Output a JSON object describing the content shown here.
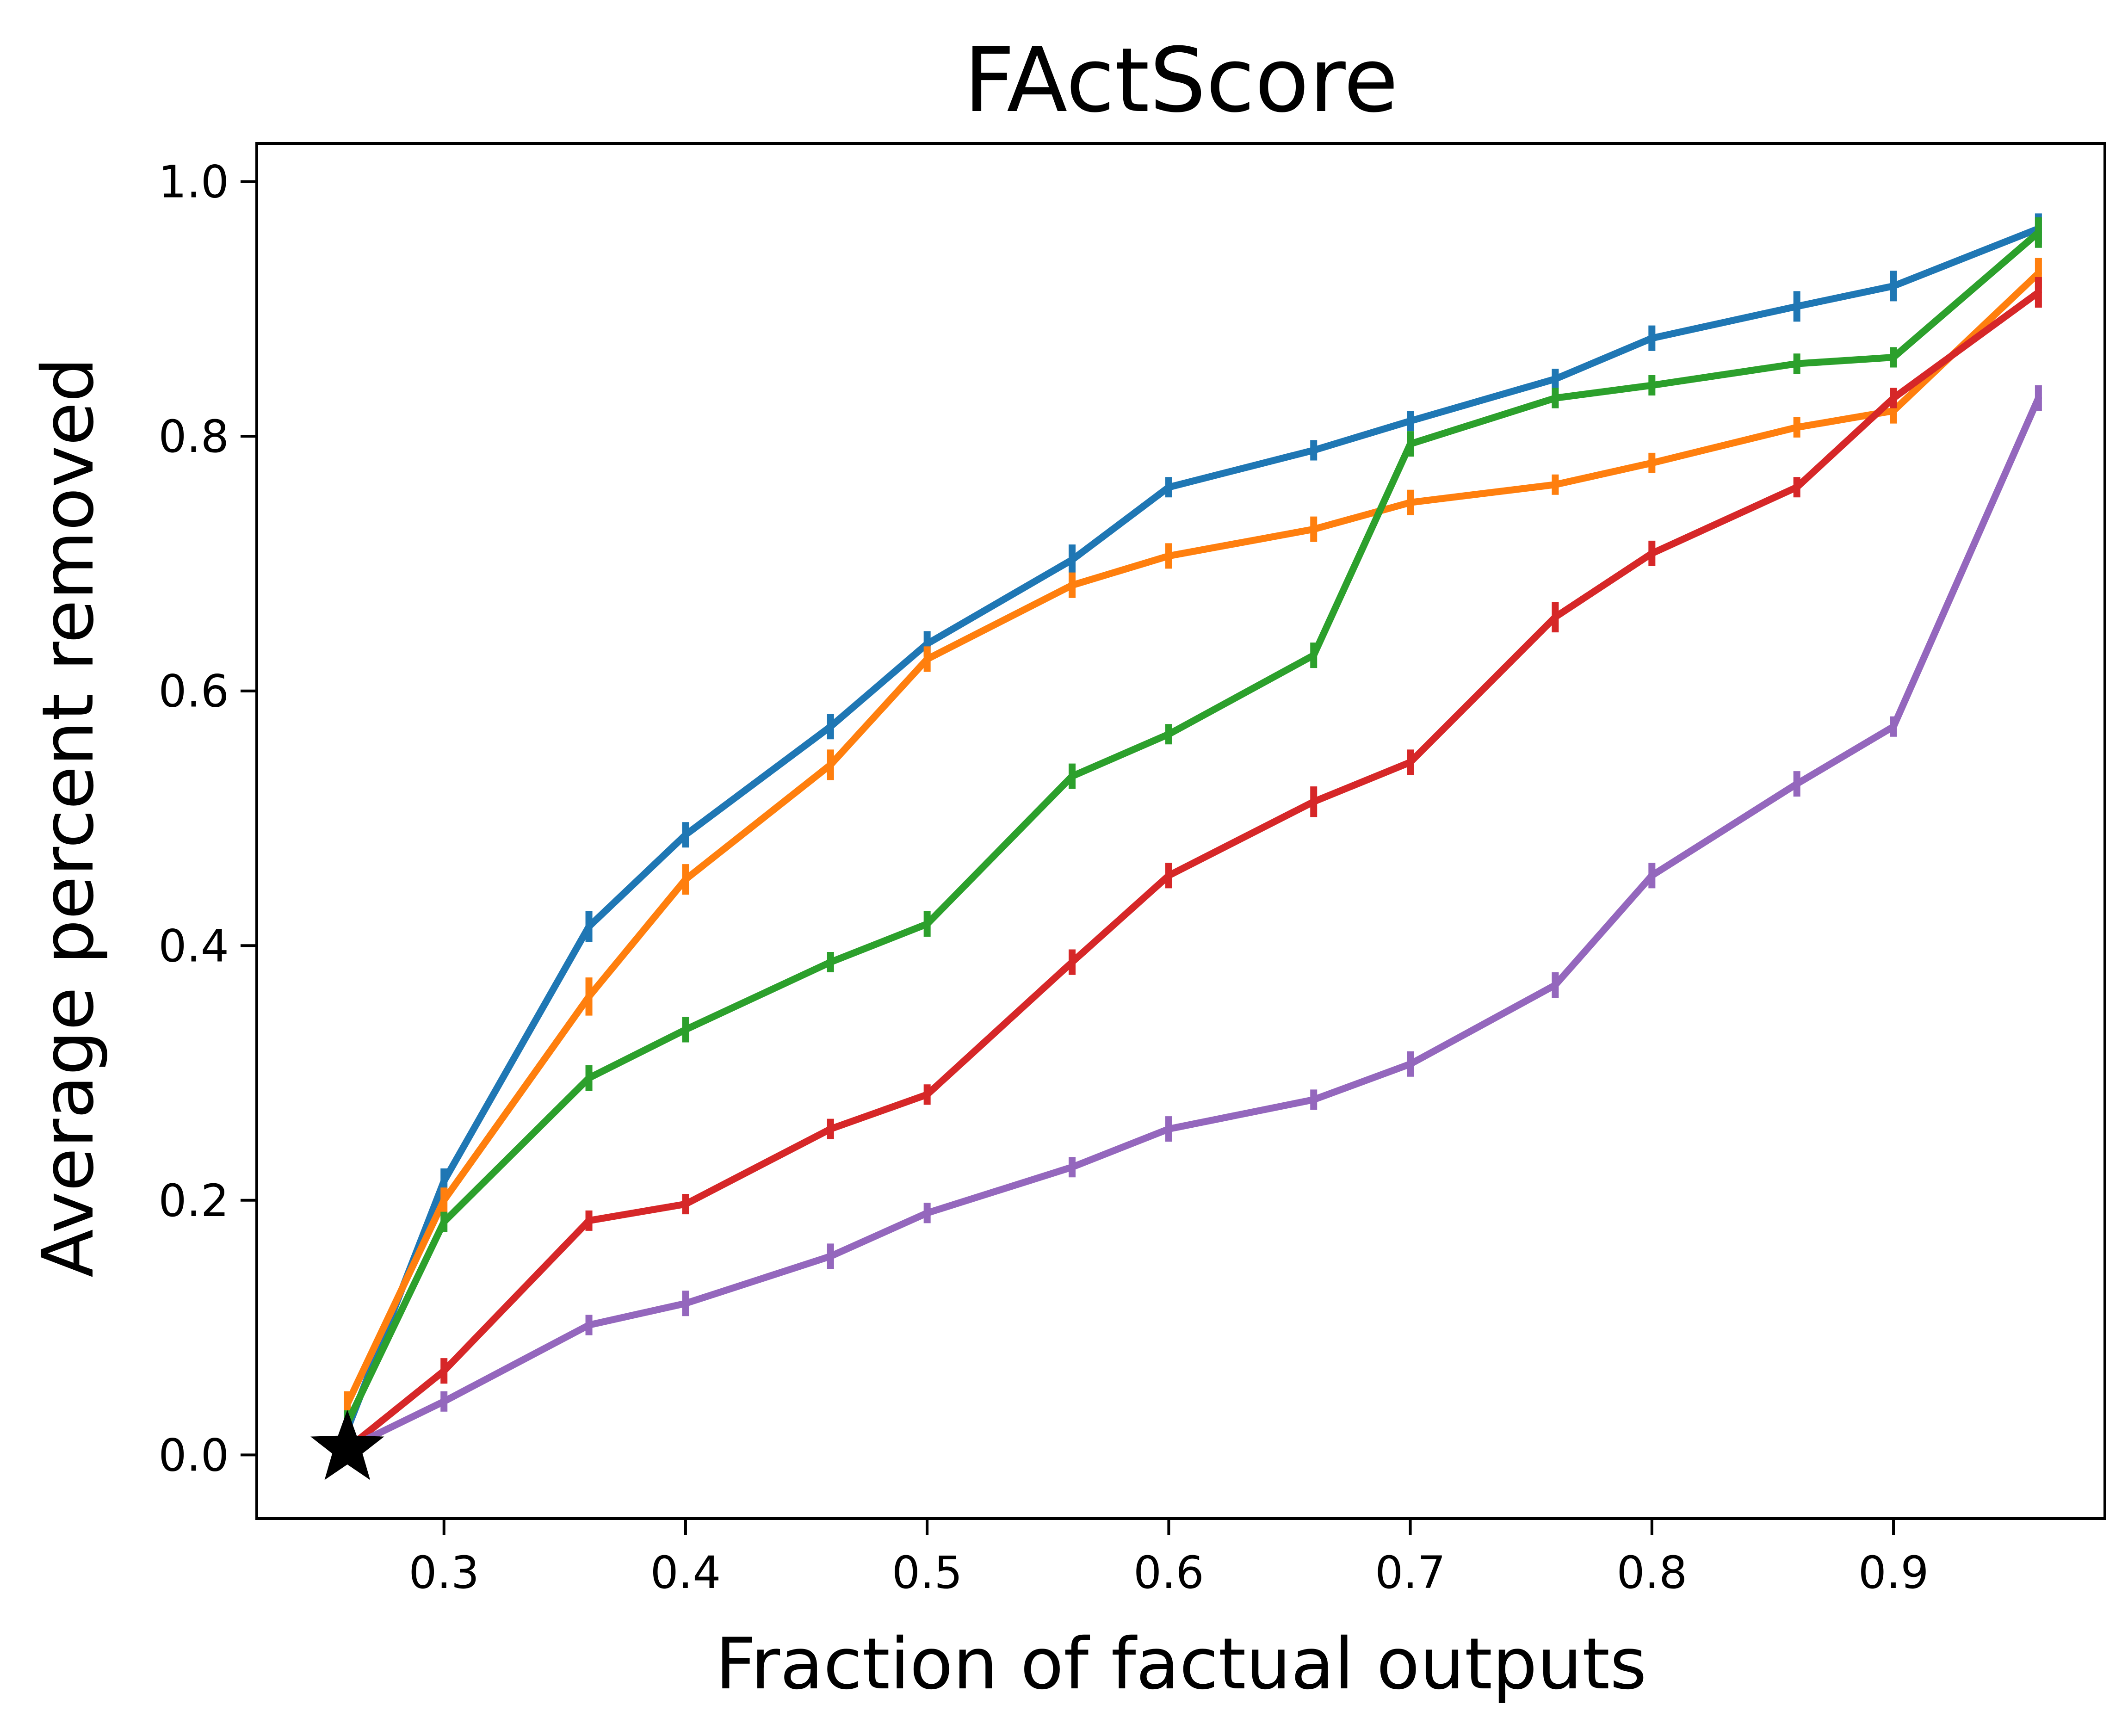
{
  "chart_data": {
    "type": "line",
    "title": "FActScore",
    "xlabel": "Fraction of factual outputs",
    "ylabel": "Average percent removed",
    "xlim": [
      0.2225,
      0.9875
    ],
    "ylim": [
      -0.05,
      1.03
    ],
    "xticks": [
      "0.3",
      "0.4",
      "0.5",
      "0.6",
      "0.7",
      "0.8",
      "0.9"
    ],
    "yticks": [
      "0.0",
      "0.2",
      "0.4",
      "0.6",
      "0.8",
      "1.0"
    ],
    "grid": false,
    "legend": "none",
    "x": [
      0.26,
      0.3,
      0.36,
      0.4,
      0.46,
      0.5,
      0.56,
      0.6,
      0.66,
      0.7,
      0.76,
      0.8,
      0.86,
      0.9,
      0.96
    ],
    "series": [
      {
        "color": "#1f77b4",
        "values": [
          0.02,
          0.215,
          0.415,
          0.487,
          0.572,
          0.637,
          0.703,
          0.76,
          0.789,
          0.812,
          0.845,
          0.877,
          0.902,
          0.918,
          0.963
        ],
        "errors": [
          0.01,
          0.01,
          0.012,
          0.01,
          0.01,
          0.01,
          0.012,
          0.008,
          0.008,
          0.008,
          0.008,
          0.01,
          0.012,
          0.012,
          0.012
        ]
      },
      {
        "color": "#ff7f0e",
        "values": [
          0.04,
          0.2,
          0.36,
          0.452,
          0.542,
          0.625,
          0.683,
          0.706,
          0.727,
          0.748,
          0.762,
          0.779,
          0.807,
          0.82,
          0.928
        ],
        "errors": [
          0.01,
          0.01,
          0.015,
          0.012,
          0.012,
          0.01,
          0.01,
          0.01,
          0.01,
          0.01,
          0.008,
          0.008,
          0.008,
          0.01,
          0.012
        ]
      },
      {
        "color": "#2ca02c",
        "values": [
          0.025,
          0.183,
          0.296,
          0.334,
          0.387,
          0.417,
          0.533,
          0.566,
          0.628,
          0.794,
          0.83,
          0.84,
          0.857,
          0.862,
          0.96
        ],
        "errors": [
          0.01,
          0.008,
          0.01,
          0.01,
          0.008,
          0.01,
          0.01,
          0.008,
          0.01,
          0.01,
          0.008,
          0.008,
          0.008,
          0.008,
          0.012
        ]
      },
      {
        "color": "#d62728",
        "values": [
          0.005,
          0.066,
          0.184,
          0.197,
          0.256,
          0.283,
          0.387,
          0.455,
          0.513,
          0.544,
          0.658,
          0.708,
          0.76,
          0.83,
          0.913
        ],
        "errors": [
          0.01,
          0.01,
          0.008,
          0.008,
          0.008,
          0.008,
          0.01,
          0.01,
          0.012,
          0.01,
          0.012,
          0.01,
          0.008,
          0.008,
          0.012
        ]
      },
      {
        "color": "#9467bd",
        "values": [
          0.005,
          0.042,
          0.102,
          0.119,
          0.156,
          0.19,
          0.226,
          0.256,
          0.279,
          0.307,
          0.369,
          0.455,
          0.527,
          0.572,
          0.83
        ],
        "errors": [
          0.005,
          0.008,
          0.008,
          0.01,
          0.01,
          0.008,
          0.008,
          0.01,
          0.008,
          0.01,
          0.01,
          0.01,
          0.01,
          0.008,
          0.01
        ]
      }
    ],
    "marker": {
      "shape": "star",
      "color": "#000000",
      "x": 0.26,
      "y": 0.005
    }
  }
}
